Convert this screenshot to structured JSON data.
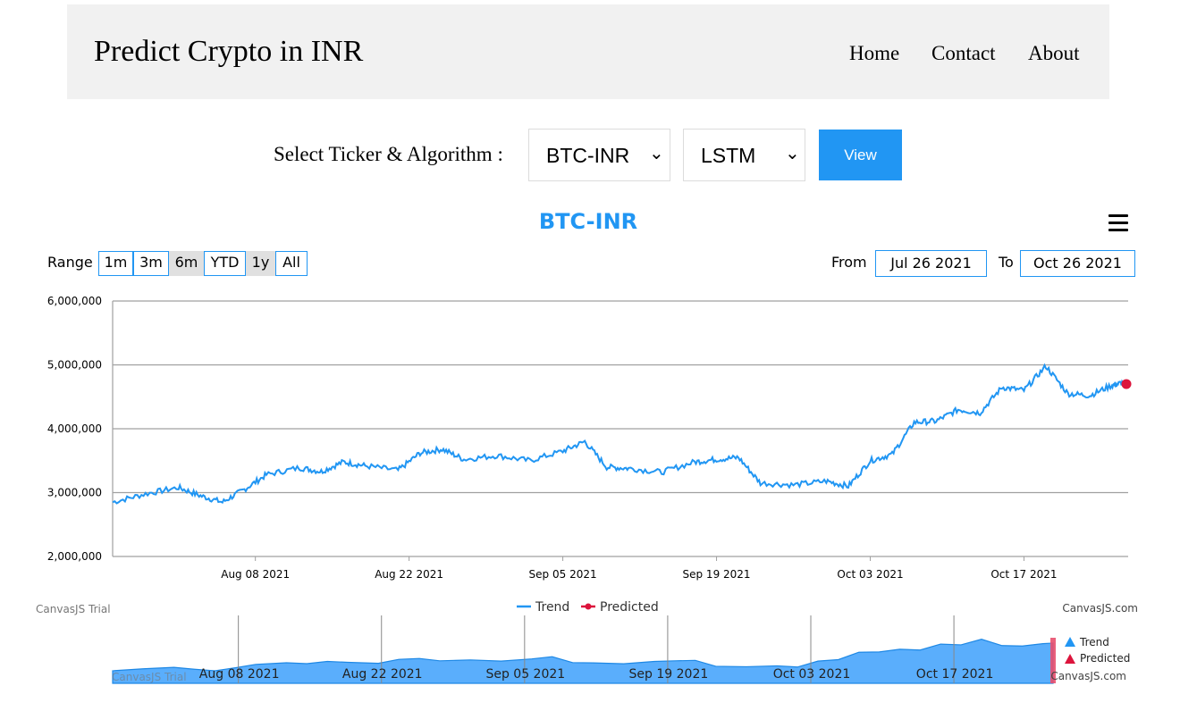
{
  "header": {
    "brand": "Predict Crypto in INR",
    "nav": [
      "Home",
      "Contact",
      "About"
    ]
  },
  "controls": {
    "label": "Select Ticker & Algorithm :",
    "ticker": "BTC-INR",
    "algorithm": "LSTM",
    "view_label": "View"
  },
  "toolbar": {
    "range_label": "Range",
    "ranges": [
      "1m",
      "3m",
      "6m",
      "YTD",
      "1y",
      "All"
    ],
    "active_ranges": [
      "6m",
      "1y"
    ],
    "from_label": "From",
    "from_value": "Jul 26 2021",
    "to_label": "To",
    "to_value": "Oct 26 2021"
  },
  "watermarks": {
    "trial": "CanvasJS Trial",
    "site": "CanvasJS.com"
  },
  "colors": {
    "accent": "#2196f3",
    "trend": "#2196f3",
    "predicted": "#dc143c",
    "navigator_fill": "#5aaefc"
  },
  "chart_data": {
    "type": "line",
    "title": "BTC-INR",
    "xlabel": "",
    "ylabel": "",
    "ylim": [
      2000000,
      6000000
    ],
    "x_ticks": [
      "Aug 08 2021",
      "Aug 22 2021",
      "Sep 05 2021",
      "Sep 19 2021",
      "Oct 03 2021",
      "Oct 17 2021"
    ],
    "y_ticks": [
      "2,000,000",
      "3,000,000",
      "4,000,000",
      "5,000,000",
      "6,000,000"
    ],
    "grid": true,
    "legend_position": "bottom",
    "series": [
      {
        "name": "Trend",
        "color": "#2196f3",
        "x": [
          "2021-07-26",
          "2021-07-29",
          "2021-08-01",
          "2021-08-03",
          "2021-08-05",
          "2021-08-07",
          "2021-08-09",
          "2021-08-12",
          "2021-08-14",
          "2021-08-16",
          "2021-08-18",
          "2021-08-21",
          "2021-08-23",
          "2021-08-25",
          "2021-08-27",
          "2021-08-30",
          "2021-09-02",
          "2021-09-05",
          "2021-09-07",
          "2021-09-09",
          "2021-09-11",
          "2021-09-14",
          "2021-09-17",
          "2021-09-19",
          "2021-09-21",
          "2021-09-23",
          "2021-09-26",
          "2021-09-29",
          "2021-10-01",
          "2021-10-03",
          "2021-10-05",
          "2021-10-07",
          "2021-10-09",
          "2021-10-11",
          "2021-10-13",
          "2021-10-15",
          "2021-10-17",
          "2021-10-19",
          "2021-10-21",
          "2021-10-23",
          "2021-10-25",
          "2021-10-26"
        ],
        "values": [
          2850000,
          2980000,
          3080000,
          2950000,
          2850000,
          3050000,
          3280000,
          3390000,
          3330000,
          3480000,
          3420000,
          3350000,
          3620000,
          3680000,
          3520000,
          3580000,
          3500000,
          3650000,
          3800000,
          3400000,
          3380000,
          3320000,
          3480000,
          3520000,
          3550000,
          3150000,
          3120000,
          3180000,
          3100000,
          3500000,
          3600000,
          4100000,
          4120000,
          4300000,
          4250000,
          4650000,
          4600000,
          4980000,
          4550000,
          4520000,
          4680000,
          4720000
        ]
      },
      {
        "name": "Predicted",
        "color": "#dc143c",
        "x": [
          "2021-10-26"
        ],
        "values": [
          4700000
        ]
      }
    ]
  },
  "navigator": {
    "x_ticks": [
      "Aug 08 2021",
      "Aug 22 2021",
      "Sep 05 2021",
      "Sep 19 2021",
      "Oct 03 2021",
      "Oct 17 2021"
    ],
    "legend": [
      "Trend",
      "Predicted"
    ]
  }
}
